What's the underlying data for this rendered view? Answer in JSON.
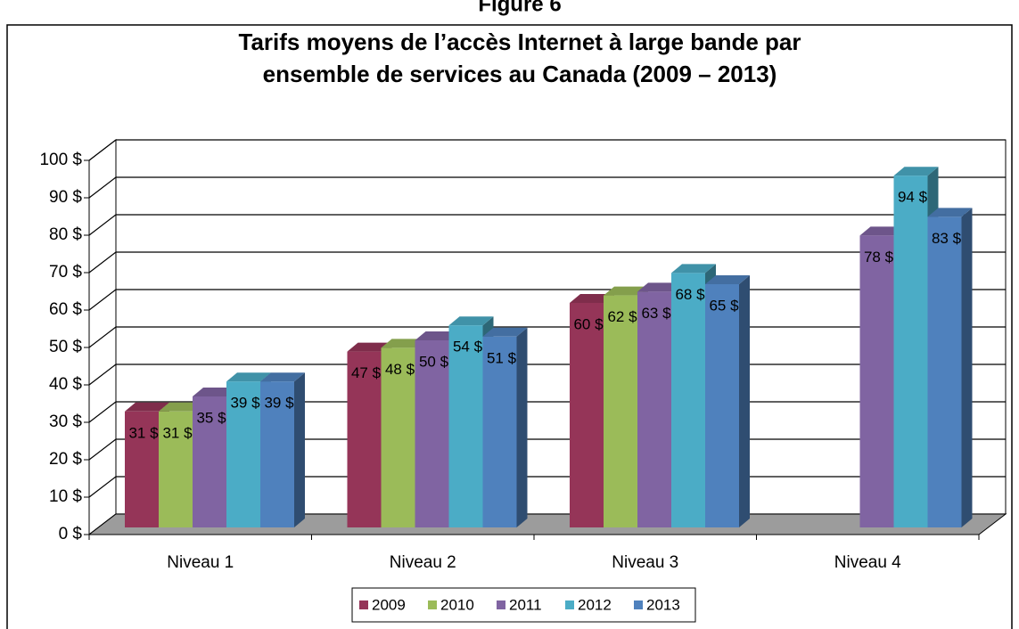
{
  "chart_data": {
    "type": "bar3d",
    "figure_label": "Figure 6",
    "title": "Tarifs moyens de l’accès Internet à large bande par",
    "title_line2": "ensemble de services au Canada (2009 – 2013)",
    "categories": [
      "Niveau 1",
      "Niveau 2",
      "Niveau 3",
      "Niveau 4"
    ],
    "series": [
      {
        "name": "2009",
        "color": "#953558",
        "values": [
          31,
          47,
          60,
          null
        ],
        "value_labels": [
          "31 $",
          "47 $",
          "60 $",
          null
        ]
      },
      {
        "name": "2010",
        "color": "#9bbb59",
        "values": [
          31,
          48,
          62,
          null
        ],
        "value_labels": [
          "31 $",
          "48 $",
          "62 $",
          null
        ]
      },
      {
        "name": "2011",
        "color": "#8064a2",
        "values": [
          35,
          50,
          63,
          78
        ],
        "value_labels": [
          "35 $",
          "50 $",
          "63 $",
          "78 $"
        ]
      },
      {
        "name": "2012",
        "color": "#4bacc6",
        "values": [
          39,
          54,
          68,
          94
        ],
        "value_labels": [
          "39 $",
          "54 $",
          "68 $",
          "94 $"
        ]
      },
      {
        "name": "2013",
        "color": "#4f81bd",
        "values": [
          39,
          51,
          65,
          83
        ],
        "value_labels": [
          "39 $",
          "51 $",
          "65 $",
          "83 $"
        ]
      }
    ],
    "ylim": [
      0,
      100
    ],
    "yticks": [
      {
        "value": 0,
        "label": "0 $"
      },
      {
        "value": 10,
        "label": "10 $"
      },
      {
        "value": 20,
        "label": "20 $"
      },
      {
        "value": 30,
        "label": "30 $"
      },
      {
        "value": 40,
        "label": "40 $"
      },
      {
        "value": 50,
        "label": "50 $"
      },
      {
        "value": 60,
        "label": "60 $"
      },
      {
        "value": 70,
        "label": "70 $"
      },
      {
        "value": 80,
        "label": "80 $"
      },
      {
        "value": 90,
        "label": "90 $"
      },
      {
        "value": 100,
        "label": "100 $"
      }
    ],
    "grid": true,
    "legend": "bottom"
  }
}
